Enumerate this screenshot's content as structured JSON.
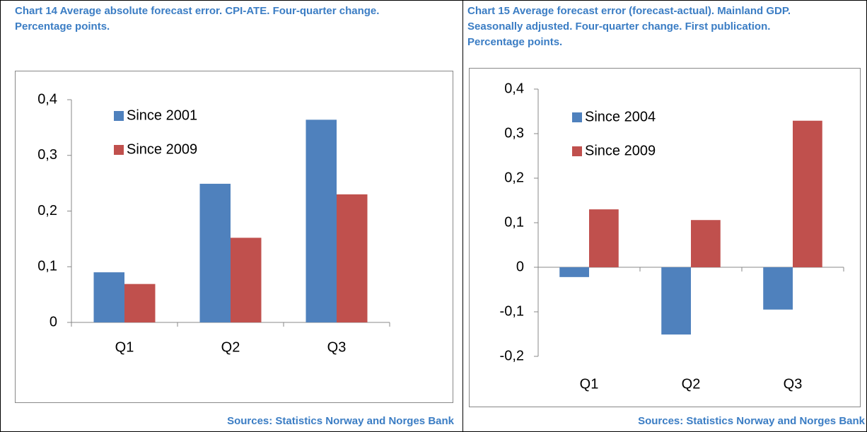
{
  "chart_data": [
    {
      "type": "bar",
      "title": "Chart 14 Average absolute forecast error. CPI-ATE. Four-quarter change. Percentage points.",
      "categories": [
        "Q1",
        "Q2",
        "Q3"
      ],
      "series": [
        {
          "name": "Since 2001",
          "color": "#4f81bd",
          "values": [
            0.09,
            0.249,
            0.364
          ]
        },
        {
          "name": "Since 2009",
          "color": "#c0504d",
          "values": [
            0.069,
            0.152,
            0.23
          ]
        }
      ],
      "ylim": [
        0,
        0.4
      ],
      "yticks": [
        0,
        {
          "value": 0.1,
          "label": "0,1"
        },
        {
          "value": 0.2,
          "label": "0,2"
        },
        {
          "value": 0.3,
          "label": "0,3"
        },
        {
          "value": 0.4,
          "label": "0,4"
        }
      ],
      "source": "Sources: Statistics Norway and Norges Bank"
    },
    {
      "type": "bar",
      "title": "Chart 15 Average forecast error (forecast-actual). Mainland GDP. Seasonally adjusted. Four-quarter change. First publication. Percentage points.",
      "categories": [
        "Q1",
        "Q2",
        "Q3"
      ],
      "series": [
        {
          "name": "Since 2004",
          "color": "#4f81bd",
          "values": [
            -0.022,
            -0.151,
            -0.095
          ]
        },
        {
          "name": "Since 2009",
          "color": "#c0504d",
          "values": [
            0.13,
            0.106,
            0.329
          ]
        }
      ],
      "ylim": [
        -0.2,
        0.4
      ],
      "yticks": [
        {
          "value": -0.2,
          "label": "-0,2"
        },
        {
          "value": -0.1,
          "label": "-0,1"
        },
        0,
        {
          "value": 0.1,
          "label": "0,1"
        },
        {
          "value": 0.2,
          "label": "0,2"
        },
        {
          "value": 0.3,
          "label": "0,3"
        },
        {
          "value": 0.4,
          "label": "0,4"
        }
      ],
      "source": "Sources: Statistics Norway and Norges Bank"
    }
  ]
}
